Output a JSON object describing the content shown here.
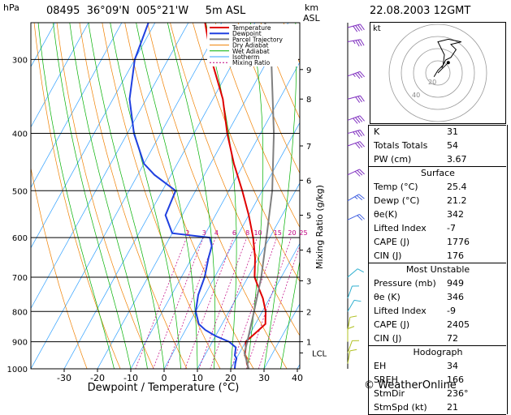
{
  "header": {
    "station": "08495",
    "lat": "36°09'N",
    "lon": "005°21'W",
    "elevation": "5m ASL",
    "datetime": "22.08.2003 12GMT",
    "p_unit": "hPa",
    "km_unit": "km",
    "asl": "ASL"
  },
  "legend": [
    {
      "label": "Temperature",
      "color": "#e00000"
    },
    {
      "label": "Dewpoint",
      "color": "#2040e0"
    },
    {
      "label": "Parcel Trajectory",
      "color": "#808080"
    },
    {
      "label": "Dry Adiabat",
      "color": "#f08000"
    },
    {
      "label": "Wet Adiabat",
      "color": "#00b000"
    },
    {
      "label": "Isotherm",
      "color": "#30a0ff"
    },
    {
      "label": "Mixing Ratio",
      "color": "#c00080"
    }
  ],
  "chart_data": {
    "type": "line",
    "title": "",
    "xlabel": "Dewpoint / Temperature (°C)",
    "ylabel": "Mixing Ratio (g/kg)",
    "pressure_ticks": [
      300,
      400,
      500,
      600,
      700,
      800,
      900,
      1000
    ],
    "x_ticks": [
      -30,
      -20,
      -10,
      0,
      10,
      20,
      30,
      40
    ],
    "height_ticks": [
      {
        "label": "9",
        "p": 312
      },
      {
        "label": "8",
        "p": 350
      },
      {
        "label": "7",
        "p": 420
      },
      {
        "label": "6",
        "p": 480
      },
      {
        "label": "5",
        "p": 550
      },
      {
        "label": "4",
        "p": 630
      },
      {
        "label": "3",
        "p": 710
      },
      {
        "label": "2",
        "p": 800
      },
      {
        "label": "1",
        "p": 900
      },
      {
        "label": "LCL",
        "p": 940
      }
    ],
    "mixing_ratio_labels": [
      "2",
      "3",
      "4",
      "6",
      "8",
      "10",
      "15",
      "20",
      "25"
    ],
    "series": [
      {
        "name": "Temperature",
        "points": [
          [
            1000,
            25.4
          ],
          [
            980,
            24
          ],
          [
            960,
            23
          ],
          [
            949,
            22
          ],
          [
            920,
            21
          ],
          [
            900,
            20
          ],
          [
            880,
            21
          ],
          [
            860,
            22
          ],
          [
            840,
            23
          ],
          [
            820,
            22
          ],
          [
            800,
            21
          ],
          [
            760,
            18
          ],
          [
            720,
            14
          ],
          [
            700,
            12
          ],
          [
            650,
            9
          ],
          [
            600,
            5
          ],
          [
            550,
            0
          ],
          [
            500,
            -6
          ],
          [
            450,
            -13
          ],
          [
            400,
            -20
          ],
          [
            350,
            -27
          ],
          [
            300,
            -37
          ],
          [
            260,
            -45
          ]
        ]
      },
      {
        "name": "Dewpoint",
        "points": [
          [
            1000,
            21.2
          ],
          [
            980,
            20.5
          ],
          [
            960,
            20
          ],
          [
            949,
            19
          ],
          [
            920,
            18
          ],
          [
            900,
            15
          ],
          [
            880,
            10
          ],
          [
            860,
            6
          ],
          [
            840,
            3
          ],
          [
            800,
            0
          ],
          [
            750,
            -2
          ],
          [
            700,
            -3
          ],
          [
            650,
            -5
          ],
          [
            620,
            -6
          ],
          [
            600,
            -8
          ],
          [
            590,
            -20
          ],
          [
            550,
            -25
          ],
          [
            500,
            -26
          ],
          [
            470,
            -35
          ],
          [
            450,
            -40
          ],
          [
            400,
            -48
          ],
          [
            350,
            -55
          ],
          [
            300,
            -60
          ],
          [
            260,
            -62
          ]
        ]
      },
      {
        "name": "Parcel Trajectory",
        "points": [
          [
            1000,
            25.4
          ],
          [
            940,
            21.5
          ],
          [
            900,
            20.5
          ],
          [
            800,
            17.5
          ],
          [
            700,
            14
          ],
          [
            600,
            9
          ],
          [
            500,
            3
          ],
          [
            400,
            -6
          ],
          [
            300,
            -19
          ],
          [
            260,
            -27
          ]
        ]
      }
    ],
    "dry_adiabat_thetas_K": [
      250,
      260,
      270,
      280,
      290,
      300,
      310,
      320,
      330,
      340,
      350,
      360,
      370,
      380,
      390,
      400,
      410,
      420,
      430,
      440,
      450
    ],
    "wet_adiabat_thetaw_C": [
      -15,
      -10,
      -5,
      0,
      5,
      10,
      15,
      20,
      25,
      30,
      35
    ],
    "mixing_ratios_gkg": [
      2,
      3,
      4,
      6,
      8,
      10,
      15,
      20,
      25
    ],
    "p_range": [
      1000,
      260
    ],
    "x_range": [
      -35,
      40
    ]
  },
  "indices": {
    "rows": [
      {
        "label": "K",
        "value": "31"
      },
      {
        "label": "Totals Totals",
        "value": "54"
      },
      {
        "label": "PW (cm)",
        "value": "3.67"
      }
    ],
    "surface_title": "Surface",
    "surface": [
      {
        "label": "Temp (°C)",
        "value": "25.4"
      },
      {
        "label": "Dewp (°C)",
        "value": "21.2"
      },
      {
        "label": "θe(K)",
        "value": "342"
      },
      {
        "label": "Lifted Index",
        "value": "-7"
      },
      {
        "label": "CAPE (J)",
        "value": "1776"
      },
      {
        "label": "CIN (J)",
        "value": "176"
      }
    ],
    "mu_title": "Most Unstable",
    "mu": [
      {
        "label": "Pressure (mb)",
        "value": "949"
      },
      {
        "label": "θe (K)",
        "value": "346"
      },
      {
        "label": "Lifted Index",
        "value": "-9"
      },
      {
        "label": "CAPE (J)",
        "value": "2405"
      },
      {
        "label": "CIN (J)",
        "value": "72"
      }
    ],
    "hodo_title": "Hodograph",
    "hodo": [
      {
        "label": "EH",
        "value": "34"
      },
      {
        "label": "SREH",
        "value": "166"
      },
      {
        "label": "StmDir",
        "value": "236°"
      },
      {
        "label": "StmSpd (kt)",
        "value": "21"
      }
    ]
  },
  "hodograph": {
    "unit": "kt",
    "ring_labels": [
      "20",
      "40"
    ],
    "trace_uv": [
      [
        -3,
        -3
      ],
      [
        0,
        2
      ],
      [
        4,
        6
      ],
      [
        5,
        14
      ],
      [
        0,
        24
      ],
      [
        8,
        26
      ],
      [
        18,
        24
      ],
      [
        10,
        22
      ],
      [
        14,
        18
      ],
      [
        10,
        12
      ],
      [
        6,
        10
      ],
      [
        3,
        4
      ]
    ],
    "storm_uv": [
      8,
      8
    ]
  },
  "winds": [
    {
      "p": 265,
      "spd": 40,
      "dir": 255
    },
    {
      "p": 280,
      "spd": 35,
      "dir": 260
    },
    {
      "p": 320,
      "spd": 35,
      "dir": 250
    },
    {
      "p": 350,
      "spd": 30,
      "dir": 255
    },
    {
      "p": 380,
      "spd": 40,
      "dir": 250
    },
    {
      "p": 400,
      "spd": 35,
      "dir": 255
    },
    {
      "p": 420,
      "spd": 30,
      "dir": 250
    },
    {
      "p": 470,
      "spd": 30,
      "dir": 245
    },
    {
      "p": 520,
      "spd": 25,
      "dir": 240
    },
    {
      "p": 560,
      "spd": 20,
      "dir": 245
    },
    {
      "p": 700,
      "spd": 10,
      "dir": 230
    },
    {
      "p": 760,
      "spd": 10,
      "dir": 200
    },
    {
      "p": 800,
      "spd": 10,
      "dir": 210
    },
    {
      "p": 860,
      "spd": 10,
      "dir": 190
    },
    {
      "p": 900,
      "spd": 10,
      "dir": 180
    },
    {
      "p": 940,
      "spd": 10,
      "dir": 200
    },
    {
      "p": 980,
      "spd": 10,
      "dir": 190
    }
  ],
  "footer": {
    "brand": "© WeatherOnline"
  }
}
